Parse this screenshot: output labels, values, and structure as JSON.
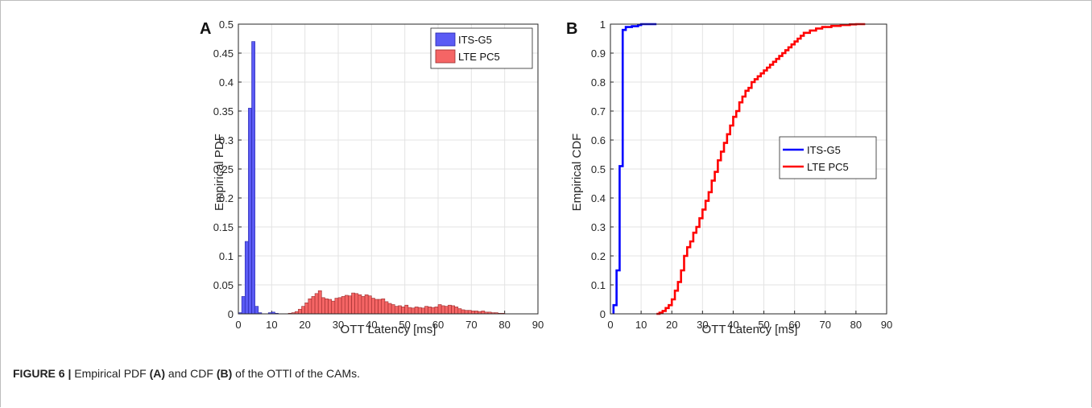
{
  "caption": {
    "label": "FIGURE 6 |",
    "text_1": " Empirical PDF ",
    "ref_a": "(A)",
    "text_2": " and CDF ",
    "ref_b": "(B)",
    "text_3": " of the OTTl of the CAMs."
  },
  "colors": {
    "its_fill": "#5b5bf5",
    "its_edge": "#2525a8",
    "lte_fill": "#f56565",
    "lte_edge": "#9a2b2b",
    "its_line": "#0000ff",
    "lte_line": "#ff0000",
    "grid": "#e3e3e3",
    "axis": "#262626"
  },
  "chart_data": [
    {
      "panel": "A",
      "type": "bar",
      "xlabel": "OTT Latency [ms]",
      "ylabel": "Empirical PDF",
      "xlim": [
        0,
        90
      ],
      "ylim": [
        0,
        0.5
      ],
      "xticks": [
        "0",
        "10",
        "20",
        "30",
        "40",
        "50",
        "60",
        "70",
        "80",
        "90"
      ],
      "yticks": [
        "0",
        "0.05",
        "0.1",
        "0.15",
        "0.2",
        "0.25",
        "0.3",
        "0.35",
        "0.4",
        "0.45",
        "0.5"
      ],
      "grid": true,
      "legend_position": "top-right",
      "bin_width": 1,
      "series": [
        {
          "name": "ITS-G5",
          "bins": [
            {
              "x": 0,
              "y": 0.002
            },
            {
              "x": 1,
              "y": 0.03
            },
            {
              "x": 2,
              "y": 0.125
            },
            {
              "x": 3,
              "y": 0.355
            },
            {
              "x": 4,
              "y": 0.47
            },
            {
              "x": 5,
              "y": 0.013
            },
            {
              "x": 6,
              "y": 0.002
            },
            {
              "x": 9,
              "y": 0.002
            },
            {
              "x": 10,
              "y": 0.003
            },
            {
              "x": 11,
              "y": 0.001
            }
          ]
        },
        {
          "name": "LTE PC5",
          "bins": [
            {
              "x": 15,
              "y": 0.001
            },
            {
              "x": 16,
              "y": 0.002
            },
            {
              "x": 17,
              "y": 0.004
            },
            {
              "x": 18,
              "y": 0.008
            },
            {
              "x": 19,
              "y": 0.013
            },
            {
              "x": 20,
              "y": 0.019
            },
            {
              "x": 21,
              "y": 0.026
            },
            {
              "x": 22,
              "y": 0.03
            },
            {
              "x": 23,
              "y": 0.035
            },
            {
              "x": 24,
              "y": 0.04
            },
            {
              "x": 25,
              "y": 0.028
            },
            {
              "x": 26,
              "y": 0.026
            },
            {
              "x": 27,
              "y": 0.025
            },
            {
              "x": 28,
              "y": 0.022
            },
            {
              "x": 29,
              "y": 0.027
            },
            {
              "x": 30,
              "y": 0.028
            },
            {
              "x": 31,
              "y": 0.03
            },
            {
              "x": 32,
              "y": 0.032
            },
            {
              "x": 33,
              "y": 0.031
            },
            {
              "x": 34,
              "y": 0.036
            },
            {
              "x": 35,
              "y": 0.035
            },
            {
              "x": 36,
              "y": 0.033
            },
            {
              "x": 37,
              "y": 0.03
            },
            {
              "x": 38,
              "y": 0.033
            },
            {
              "x": 39,
              "y": 0.031
            },
            {
              "x": 40,
              "y": 0.027
            },
            {
              "x": 41,
              "y": 0.025
            },
            {
              "x": 42,
              "y": 0.025
            },
            {
              "x": 43,
              "y": 0.026
            },
            {
              "x": 44,
              "y": 0.021
            },
            {
              "x": 45,
              "y": 0.018
            },
            {
              "x": 46,
              "y": 0.016
            },
            {
              "x": 47,
              "y": 0.013
            },
            {
              "x": 48,
              "y": 0.014
            },
            {
              "x": 49,
              "y": 0.012
            },
            {
              "x": 50,
              "y": 0.015
            },
            {
              "x": 51,
              "y": 0.011
            },
            {
              "x": 52,
              "y": 0.01
            },
            {
              "x": 53,
              "y": 0.012
            },
            {
              "x": 54,
              "y": 0.011
            },
            {
              "x": 55,
              "y": 0.01
            },
            {
              "x": 56,
              "y": 0.013
            },
            {
              "x": 57,
              "y": 0.012
            },
            {
              "x": 58,
              "y": 0.011
            },
            {
              "x": 59,
              "y": 0.012
            },
            {
              "x": 60,
              "y": 0.016
            },
            {
              "x": 61,
              "y": 0.014
            },
            {
              "x": 62,
              "y": 0.013
            },
            {
              "x": 63,
              "y": 0.015
            },
            {
              "x": 64,
              "y": 0.014
            },
            {
              "x": 65,
              "y": 0.012
            },
            {
              "x": 66,
              "y": 0.009
            },
            {
              "x": 67,
              "y": 0.007
            },
            {
              "x": 68,
              "y": 0.006
            },
            {
              "x": 69,
              "y": 0.006
            },
            {
              "x": 70,
              "y": 0.005
            },
            {
              "x": 71,
              "y": 0.005
            },
            {
              "x": 72,
              "y": 0.004
            },
            {
              "x": 73,
              "y": 0.005
            },
            {
              "x": 74,
              "y": 0.003
            },
            {
              "x": 75,
              "y": 0.003
            },
            {
              "x": 76,
              "y": 0.002
            },
            {
              "x": 77,
              "y": 0.002
            },
            {
              "x": 78,
              "y": 0.001
            },
            {
              "x": 79,
              "y": 0.001
            }
          ]
        }
      ]
    },
    {
      "panel": "B",
      "type": "line",
      "xlabel": "OTT Latency [ms]",
      "ylabel": "Empirical CDF",
      "xlim": [
        0,
        90
      ],
      "ylim": [
        0,
        1
      ],
      "xticks": [
        "0",
        "10",
        "20",
        "30",
        "40",
        "50",
        "60",
        "70",
        "80",
        "90"
      ],
      "yticks": [
        "0",
        "0.1",
        "0.2",
        "0.3",
        "0.4",
        "0.5",
        "0.6",
        "0.7",
        "0.8",
        "0.9",
        "1"
      ],
      "grid": true,
      "legend_position": "center-right",
      "step": true,
      "series": [
        {
          "name": "ITS-G5",
          "points": [
            [
              1,
              0
            ],
            [
              1,
              0.03
            ],
            [
              2,
              0.03
            ],
            [
              2,
              0.15
            ],
            [
              3,
              0.15
            ],
            [
              3,
              0.51
            ],
            [
              4,
              0.51
            ],
            [
              4,
              0.98
            ],
            [
              5,
              0.98
            ],
            [
              5,
              0.99
            ],
            [
              7,
              0.99
            ],
            [
              7,
              0.993
            ],
            [
              9,
              0.993
            ],
            [
              9,
              0.997
            ],
            [
              10,
              0.997
            ],
            [
              10,
              1
            ],
            [
              15,
              1
            ]
          ]
        },
        {
          "name": "LTE PC5",
          "points": [
            [
              15,
              0
            ],
            [
              16,
              0
            ],
            [
              16,
              0.004
            ],
            [
              17,
              0.004
            ],
            [
              17,
              0.01
            ],
            [
              18,
              0.01
            ],
            [
              18,
              0.02
            ],
            [
              19,
              0.02
            ],
            [
              19,
              0.03
            ],
            [
              20,
              0.03
            ],
            [
              20,
              0.05
            ],
            [
              21,
              0.05
            ],
            [
              21,
              0.08
            ],
            [
              22,
              0.08
            ],
            [
              22,
              0.11
            ],
            [
              23,
              0.11
            ],
            [
              23,
              0.15
            ],
            [
              24,
              0.15
            ],
            [
              24,
              0.2
            ],
            [
              25,
              0.2
            ],
            [
              25,
              0.23
            ],
            [
              26,
              0.23
            ],
            [
              26,
              0.25
            ],
            [
              27,
              0.25
            ],
            [
              27,
              0.28
            ],
            [
              28,
              0.28
            ],
            [
              28,
              0.3
            ],
            [
              29,
              0.3
            ],
            [
              29,
              0.33
            ],
            [
              30,
              0.33
            ],
            [
              30,
              0.36
            ],
            [
              31,
              0.36
            ],
            [
              31,
              0.39
            ],
            [
              32,
              0.39
            ],
            [
              32,
              0.42
            ],
            [
              33,
              0.42
            ],
            [
              33,
              0.46
            ],
            [
              34,
              0.46
            ],
            [
              34,
              0.49
            ],
            [
              35,
              0.49
            ],
            [
              35,
              0.53
            ],
            [
              36,
              0.53
            ],
            [
              36,
              0.56
            ],
            [
              37,
              0.56
            ],
            [
              37,
              0.59
            ],
            [
              38,
              0.59
            ],
            [
              38,
              0.62
            ],
            [
              39,
              0.62
            ],
            [
              39,
              0.65
            ],
            [
              40,
              0.65
            ],
            [
              40,
              0.68
            ],
            [
              41,
              0.68
            ],
            [
              41,
              0.7
            ],
            [
              42,
              0.7
            ],
            [
              42,
              0.73
            ],
            [
              43,
              0.73
            ],
            [
              43,
              0.75
            ],
            [
              44,
              0.75
            ],
            [
              44,
              0.77
            ],
            [
              45,
              0.77
            ],
            [
              45,
              0.78
            ],
            [
              46,
              0.78
            ],
            [
              46,
              0.8
            ],
            [
              47,
              0.8
            ],
            [
              47,
              0.81
            ],
            [
              48,
              0.81
            ],
            [
              48,
              0.82
            ],
            [
              49,
              0.82
            ],
            [
              49,
              0.83
            ],
            [
              50,
              0.83
            ],
            [
              50,
              0.84
            ],
            [
              51,
              0.84
            ],
            [
              51,
              0.85
            ],
            [
              52,
              0.85
            ],
            [
              52,
              0.86
            ],
            [
              53,
              0.86
            ],
            [
              53,
              0.87
            ],
            [
              54,
              0.87
            ],
            [
              54,
              0.88
            ],
            [
              55,
              0.88
            ],
            [
              55,
              0.89
            ],
            [
              56,
              0.89
            ],
            [
              56,
              0.9
            ],
            [
              57,
              0.9
            ],
            [
              57,
              0.91
            ],
            [
              58,
              0.91
            ],
            [
              58,
              0.92
            ],
            [
              59,
              0.92
            ],
            [
              59,
              0.93
            ],
            [
              60,
              0.93
            ],
            [
              60,
              0.94
            ],
            [
              61,
              0.94
            ],
            [
              61,
              0.95
            ],
            [
              62,
              0.95
            ],
            [
              62,
              0.96
            ],
            [
              63,
              0.96
            ],
            [
              63,
              0.97
            ],
            [
              65,
              0.97
            ],
            [
              65,
              0.978
            ],
            [
              67,
              0.978
            ],
            [
              67,
              0.985
            ],
            [
              69,
              0.985
            ],
            [
              69,
              0.99
            ],
            [
              72,
              0.99
            ],
            [
              72,
              0.994
            ],
            [
              75,
              0.994
            ],
            [
              75,
              0.997
            ],
            [
              78,
              0.997
            ],
            [
              78,
              0.999
            ],
            [
              80,
              0.999
            ],
            [
              80,
              1
            ],
            [
              83,
              1
            ]
          ]
        }
      ]
    }
  ]
}
